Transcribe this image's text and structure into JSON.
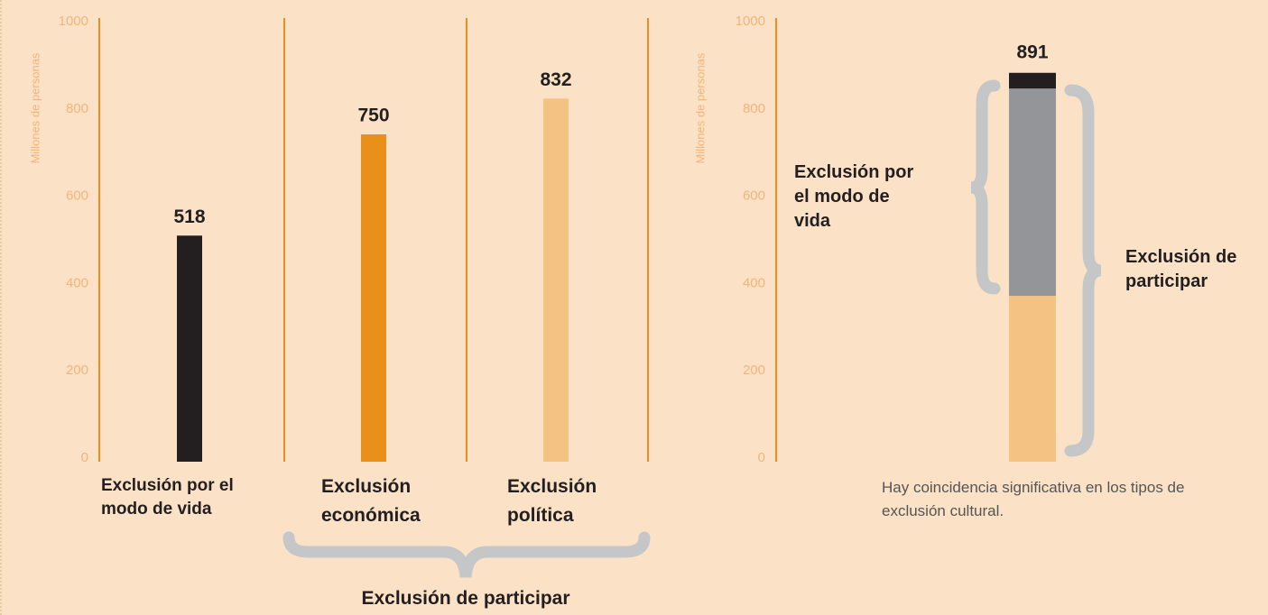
{
  "chart_data": [
    {
      "type": "bar",
      "ylabel": "Millones de personas",
      "categories": [
        "Exclusión por el modo de vida",
        "Exclusión económica",
        "Exclusión política"
      ],
      "values": [
        518,
        750,
        832
      ],
      "colors": [
        "#231f20",
        "#e8901a",
        "#f4c283"
      ],
      "ylim": [
        0,
        1000
      ],
      "yticks": [
        0,
        200,
        400,
        600,
        800,
        1000
      ],
      "annotation": "Exclusión de participar"
    },
    {
      "type": "stacked-bar",
      "ylabel": "Millones de personas",
      "series": [
        {
          "color": "#f4c283",
          "values": [
            380
          ]
        },
        {
          "color": "#939598",
          "values": [
            475
          ]
        },
        {
          "color": "#231f20",
          "values": [
            36
          ]
        }
      ],
      "total_label": 891,
      "ylim": [
        0,
        1000
      ],
      "yticks": [
        0,
        200,
        400,
        600,
        800,
        1000
      ],
      "annotations": [
        "Exclusión por el modo de vida",
        "Exclusión de participar"
      ],
      "note": "Hay coincidencia significativa en los tipos de exclusión cultural."
    }
  ]
}
